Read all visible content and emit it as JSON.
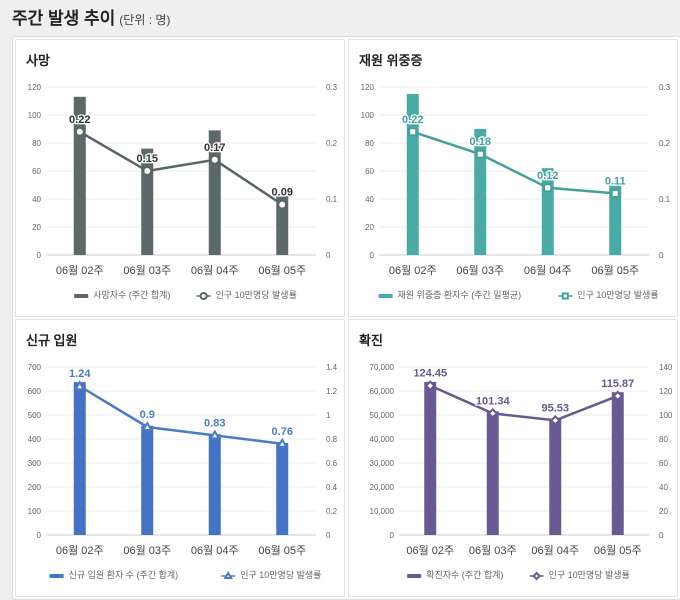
{
  "header": {
    "title": "주간 발생 추이",
    "unit": "(단위 : 명)"
  },
  "chart_data": [
    {
      "type": "bar",
      "title": "사망",
      "categories": [
        "06월 02주",
        "06월 03주",
        "06월 04주",
        "06월 05주"
      ],
      "series": [
        {
          "name": "사망자수 (주간 합계)",
          "kind": "bar",
          "axis": "left",
          "values": [
            113,
            76,
            89,
            42
          ],
          "color": "#5d6969"
        },
        {
          "name": "인구 10만명당 발생률",
          "kind": "line",
          "axis": "right",
          "values": [
            0.22,
            0.15,
            0.17,
            0.09
          ],
          "labels": [
            "0.22",
            "0.15",
            "0.17",
            "0.09"
          ],
          "color": "#596565",
          "marker": "circle"
        }
      ],
      "ylim": [
        0,
        120
      ],
      "yticks": [
        "0",
        "20",
        "40",
        "60",
        "80",
        "100",
        "120"
      ],
      "y2lim": [
        0,
        0.3
      ],
      "y2ticks": [
        "0",
        "0.1",
        "0.2",
        "0.3"
      ]
    },
    {
      "type": "bar",
      "title": "재원 위중증",
      "categories": [
        "06월 02주",
        "06월 03주",
        "06월 04주",
        "06월 05주"
      ],
      "series": [
        {
          "name": "재원 위중증 환자수 (주간 일평균)",
          "kind": "bar",
          "axis": "left",
          "values": [
            115,
            90,
            62,
            50
          ],
          "color": "#4aaaa5"
        },
        {
          "name": "인구 10만명당 발생률",
          "kind": "line",
          "axis": "right",
          "values": [
            0.22,
            0.18,
            0.12,
            0.11
          ],
          "labels": [
            "0.22",
            "0.18",
            "0.12",
            "0.11"
          ],
          "color": "#45a09b",
          "marker": "square"
        }
      ],
      "ylim": [
        0,
        120
      ],
      "yticks": [
        "0",
        "20",
        "40",
        "60",
        "80",
        "100",
        "120"
      ],
      "y2lim": [
        0,
        0.3
      ],
      "y2ticks": [
        "0",
        "0.1",
        "0.2",
        "0.3"
      ]
    },
    {
      "type": "bar",
      "title": "신규 입원",
      "categories": [
        "06월 02주",
        "06월 03주",
        "06월 04주",
        "06월 05주"
      ],
      "series": [
        {
          "name": "신규 입원 환자 수 (주간 합계)",
          "kind": "bar",
          "axis": "left",
          "values": [
            637,
            455,
            420,
            383
          ],
          "color": "#4472c4"
        },
        {
          "name": "인구 10만명당 발생률",
          "kind": "line",
          "axis": "right",
          "values": [
            1.24,
            0.9,
            0.83,
            0.76
          ],
          "labels": [
            "1.24",
            "0.9",
            "0.83",
            "0.76"
          ],
          "color": "#4a7cc6",
          "marker": "triangle"
        }
      ],
      "ylim": [
        0,
        700
      ],
      "yticks": [
        "0",
        "100",
        "200",
        "300",
        "400",
        "500",
        "600",
        "700"
      ],
      "y2lim": [
        0,
        1.4
      ],
      "y2ticks": [
        "0",
        "0.2",
        "0.4",
        "0.6",
        "0.8",
        "1",
        "1.2",
        "1.4"
      ]
    },
    {
      "type": "bar",
      "title": "확진",
      "categories": [
        "06월 02주",
        "06월 03주",
        "06월 04주",
        "06월 05주"
      ],
      "series": [
        {
          "name": "확진자수 (주간 합계)",
          "kind": "bar",
          "axis": "left",
          "values": [
            63800,
            51500,
            48500,
            59500
          ],
          "color": "#6a5a94"
        },
        {
          "name": "인구 10만명당 발생률",
          "kind": "line",
          "axis": "right",
          "values": [
            124.45,
            101.34,
            95.53,
            115.87
          ],
          "labels": [
            "124.45",
            "101.34",
            "95.53",
            "115.87"
          ],
          "color": "#675891",
          "marker": "diamond"
        }
      ],
      "ylim": [
        0,
        70000
      ],
      "yticks": [
        "0",
        "10,000",
        "20,000",
        "30,000",
        "40,000",
        "50,000",
        "60,000",
        "70,000"
      ],
      "y2lim": [
        0,
        140
      ],
      "y2ticks": [
        "0",
        "20",
        "40",
        "60",
        "80",
        "100",
        "120",
        "140"
      ]
    }
  ]
}
